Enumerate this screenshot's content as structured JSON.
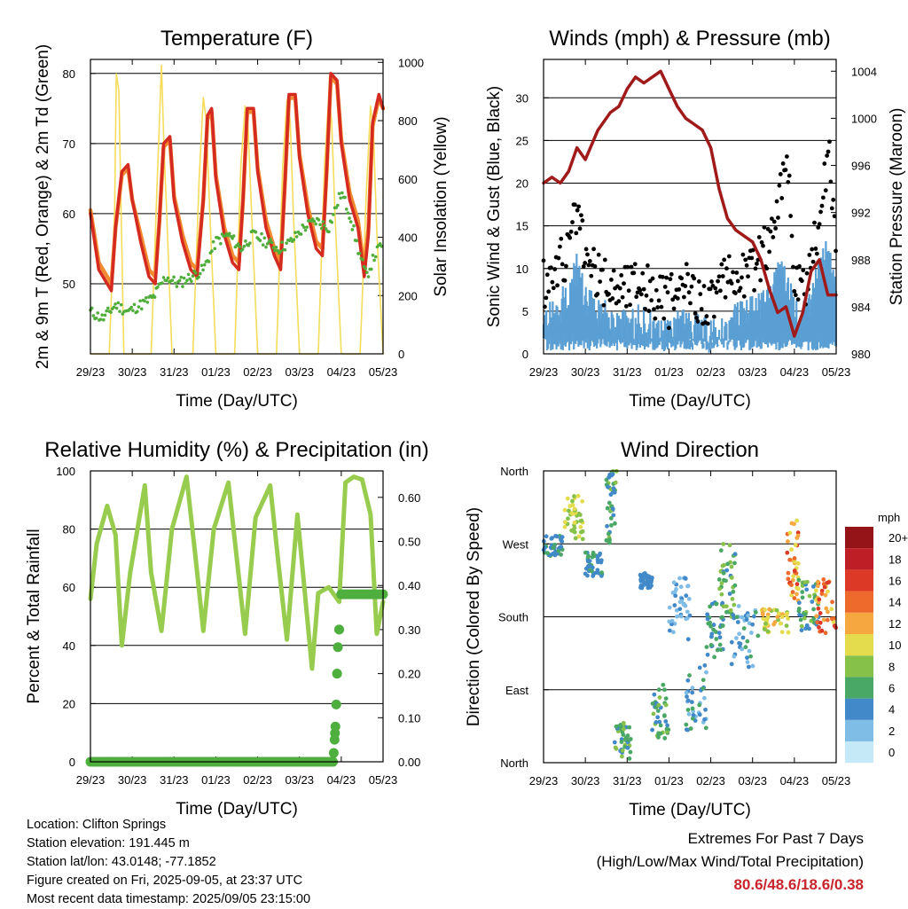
{
  "figure": {
    "info": {
      "location": "Location: Clifton Springs",
      "elevation": "Station elevation: 191.445 m",
      "latlon": "Station lat/lon: 43.0148; -77.1852",
      "created": "Figure created on Fri, 2025-09-05, at 23:37 UTC",
      "recent": "Most recent data timestamp: 2025/09/05 23:15:00"
    },
    "extremes": {
      "title": "Extremes For Past 7 Days",
      "subtitle": "(High/Low/Max Wind/Total Precipitation)",
      "values": "80.6/48.6/18.6/0.38"
    },
    "colorbar": {
      "unit": "mph",
      "labels": [
        "0",
        "2",
        "4",
        "6",
        "8",
        "10",
        "12",
        "14",
        "16",
        "18",
        "20+"
      ],
      "colors": [
        "#c6e9f7",
        "#7fbde6",
        "#4189c8",
        "#4aa866",
        "#86c14a",
        "#e4dc4c",
        "#f6a740",
        "#ee6a2c",
        "#dc3a26",
        "#be1e26",
        "#941418"
      ]
    }
  },
  "chart_data": [
    {
      "type": "line",
      "title": "Temperature (F)",
      "xlabel": "Time (Day/UTC)",
      "ylabel": "2m & 9m T (Red, Orange) & 2m Td (Green)",
      "ylabel_right": "Solar Insolation (Yellow)",
      "x_ticks": [
        "29/23",
        "30/23",
        "31/23",
        "01/23",
        "02/23",
        "03/23",
        "04/23",
        "05/23"
      ],
      "ylim": [
        40,
        82
      ],
      "y_ticks": [
        "50",
        "60",
        "70",
        "80"
      ],
      "y2lim": [
        0,
        1010
      ],
      "y2_ticks": [
        "0",
        "200",
        "400",
        "600",
        "800",
        "1000"
      ],
      "grid": "horizontal",
      "colors": {
        "t2m": "#d42a20",
        "t9m": "#f28a30",
        "td": "#4fad3a",
        "solar": "#f5dc5a"
      },
      "series": [
        {
          "key": "t2m",
          "x": [
            0,
            0.2,
            0.5,
            0.6,
            0.75,
            0.9,
            1.0,
            1.2,
            1.4,
            1.55,
            1.65,
            1.75,
            1.9,
            2.0,
            2.2,
            2.4,
            2.55,
            2.7,
            2.8,
            2.9,
            3.0,
            3.2,
            3.4,
            3.55,
            3.65,
            3.75,
            3.9,
            4.0,
            4.2,
            4.4,
            4.55,
            4.65,
            4.75,
            4.9,
            5.0,
            5.2,
            5.4,
            5.55,
            5.65,
            5.75,
            5.9,
            6.0,
            6.2,
            6.4,
            6.55,
            6.65,
            6.75,
            6.9,
            7.0
          ],
          "values": [
            60,
            52,
            49,
            58,
            66,
            67,
            62,
            56,
            51,
            50,
            59,
            70,
            71,
            62,
            56,
            52,
            51,
            62,
            74,
            75,
            65,
            57,
            53,
            52,
            62,
            75,
            75,
            66,
            58,
            54,
            52,
            64,
            77,
            77,
            68,
            60,
            55,
            54,
            66,
            80,
            79,
            70,
            62,
            58,
            51,
            57,
            73,
            77,
            75
          ]
        },
        {
          "key": "t9m",
          "x": [
            0,
            0.2,
            0.5,
            0.6,
            0.75,
            0.9,
            1.0,
            1.2,
            1.4,
            1.55,
            1.65,
            1.75,
            1.9,
            2.0,
            2.2,
            2.4,
            2.55,
            2.7,
            2.8,
            2.9,
            3.0,
            3.2,
            3.4,
            3.55,
            3.65,
            3.75,
            3.9,
            4.0,
            4.2,
            4.4,
            4.55,
            4.65,
            4.75,
            4.9,
            5.0,
            5.2,
            5.4,
            5.55,
            5.65,
            5.75,
            5.9,
            6.0,
            6.2,
            6.4,
            6.55,
            6.65,
            6.75,
            6.9,
            7.0
          ],
          "values": [
            60.5,
            53,
            50,
            58,
            65.5,
            66.5,
            62,
            57,
            52,
            51,
            59,
            69.5,
            70.5,
            62.5,
            57,
            53,
            52,
            62,
            73.5,
            74.5,
            65.5,
            58,
            54,
            53,
            62,
            74.5,
            74.5,
            66.5,
            59,
            55,
            53,
            64,
            76.5,
            76.5,
            68.5,
            61,
            56,
            55,
            66,
            79.5,
            78.5,
            70.5,
            63,
            59,
            52,
            58,
            72.5,
            76.5,
            75
          ]
        },
        {
          "key": "td",
          "x": [
            0,
            0.3,
            0.6,
            0.9,
            1.2,
            1.5,
            1.8,
            2.1,
            2.4,
            2.7,
            3.0,
            3.3,
            3.6,
            3.9,
            4.2,
            4.5,
            4.8,
            5.1,
            5.4,
            5.7,
            6.0,
            6.2,
            6.4,
            6.6,
            6.8,
            7.0
          ],
          "values": [
            46,
            45,
            47,
            46,
            47,
            48,
            51,
            50,
            51,
            52,
            56,
            57,
            55,
            57,
            56,
            55,
            56,
            58,
            59,
            58,
            63,
            60,
            55,
            51,
            54,
            56
          ]
        },
        {
          "key": "solar",
          "x": [
            0,
            0.45,
            0.58,
            0.62,
            0.68,
            0.72,
            0.8,
            1.0,
            1.45,
            1.6,
            1.7,
            1.76,
            1.82,
            1.95,
            2.45,
            2.6,
            2.7,
            2.77,
            2.85,
            3.0,
            3.45,
            3.6,
            3.7,
            3.77,
            3.85,
            4.0,
            4.45,
            4.6,
            4.7,
            4.78,
            4.85,
            5.0,
            5.45,
            5.6,
            5.7,
            5.77,
            5.85,
            6.0,
            6.45,
            6.6,
            6.7,
            6.77,
            6.85,
            7.0
          ],
          "values": [
            0,
            0,
            500,
            960,
            900,
            600,
            0,
            0,
            0,
            600,
            990,
            700,
            500,
            0,
            0,
            600,
            880,
            800,
            500,
            0,
            0,
            650,
            850,
            780,
            500,
            0,
            0,
            650,
            870,
            800,
            500,
            0,
            0,
            650,
            880,
            800,
            480,
            0,
            0,
            550,
            850,
            760,
            420,
            0
          ]
        }
      ]
    },
    {
      "type": "line",
      "title": "Winds (mph) & Pressure (mb)",
      "xlabel": "Time (Day/UTC)",
      "ylabel": "Sonic Wind & Gust (Blue, Black)",
      "ylabel_right": "Station Pressure (Maroon)",
      "x_ticks": [
        "29/23",
        "30/23",
        "31/23",
        "01/23",
        "02/23",
        "03/23",
        "04/23",
        "05/23"
      ],
      "ylim": [
        0,
        34.5
      ],
      "y_ticks": [
        "0",
        "5",
        "10",
        "15",
        "20",
        "25",
        "30"
      ],
      "y2lim": [
        980,
        1005
      ],
      "y2_ticks": [
        "980",
        "984",
        "988",
        "992",
        "996",
        "1000",
        "1004"
      ],
      "grid": "horizontal",
      "colors": {
        "wind": "#5a9fd4",
        "gust": "#000000",
        "pressure": "#a01a1a"
      },
      "series": [
        {
          "key": "pressure",
          "x": [
            0,
            0.2,
            0.4,
            0.6,
            0.8,
            1.0,
            1.3,
            1.6,
            1.8,
            2.0,
            2.2,
            2.4,
            2.6,
            2.8,
            3.0,
            3.2,
            3.4,
            3.6,
            3.8,
            4.0,
            4.2,
            4.4,
            4.6,
            4.8,
            5.0,
            5.2,
            5.4,
            5.6,
            5.8,
            6.0,
            6.2,
            6.4,
            6.6,
            6.8,
            7.0
          ],
          "values": [
            994.5,
            995,
            994.5,
            995.5,
            997.5,
            996.5,
            999,
            1000.5,
            1001,
            1002.5,
            1003.5,
            1003,
            1003.5,
            1004,
            1002.5,
            1001,
            1000,
            999.5,
            999,
            997.5,
            994,
            991.5,
            990.5,
            990,
            989.5,
            988,
            985.5,
            983.5,
            984,
            981.5,
            983.5,
            987,
            988,
            985,
            985
          ]
        },
        {
          "key": "wind",
          "x": [
            0,
            0.3,
            0.6,
            0.8,
            1.0,
            1.3,
            1.6,
            2.0,
            2.3,
            2.6,
            3.0,
            3.3,
            3.6,
            4.0,
            4.3,
            4.6,
            5.0,
            5.3,
            5.5,
            5.7,
            5.8,
            6.0,
            6.2,
            6.4,
            6.6,
            6.8,
            7.0
          ],
          "values": [
            4,
            5,
            7,
            10,
            6,
            5,
            4,
            3,
            4,
            3,
            2,
            4,
            3,
            2,
            3,
            4,
            5,
            6,
            8,
            11,
            9,
            5,
            4,
            6,
            10,
            12,
            8
          ]
        },
        {
          "key": "gust",
          "x": [
            0,
            0.3,
            0.6,
            0.8,
            1.0,
            1.3,
            1.6,
            2.0,
            2.3,
            2.6,
            3.0,
            3.3,
            3.6,
            4.0,
            4.3,
            4.6,
            5.0,
            5.3,
            5.5,
            5.7,
            5.8,
            6.0,
            6.2,
            6.4,
            6.6,
            6.8,
            7.0
          ],
          "values": [
            8,
            10,
            12,
            17,
            11,
            9,
            8,
            8,
            9,
            7,
            6,
            8,
            7,
            6,
            8,
            9,
            10,
            12,
            16,
            20,
            25,
            8,
            7,
            10,
            16,
            24,
            14
          ]
        }
      ]
    },
    {
      "type": "line",
      "title": "Relative Humidity (%) & Precipitation (in)",
      "xlabel": "Time (Day/UTC)",
      "ylabel": "Percent & Total Rainfall",
      "x_ticks": [
        "29/23",
        "30/23",
        "31/23",
        "01/23",
        "02/23",
        "03/23",
        "04/23",
        "05/23"
      ],
      "ylim": [
        0,
        100
      ],
      "y_ticks": [
        "0",
        "20",
        "40",
        "60",
        "80",
        "100"
      ],
      "y2lim": [
        0,
        0.66
      ],
      "y2_ticks": [
        "0.00",
        "0.10",
        "0.20",
        "0.30",
        "0.40",
        "0.50",
        "0.60"
      ],
      "grid": "horizontal",
      "colors": {
        "rh": "#98cc4e",
        "precip": "#4eae3e"
      },
      "series": [
        {
          "key": "rh",
          "x": [
            0,
            0.15,
            0.4,
            0.6,
            0.75,
            0.95,
            1.3,
            1.45,
            1.7,
            1.95,
            2.3,
            2.5,
            2.7,
            2.95,
            3.3,
            3.5,
            3.7,
            3.95,
            4.3,
            4.5,
            4.7,
            4.95,
            5.3,
            5.45,
            5.7,
            5.95,
            6.1,
            6.3,
            6.5,
            6.7,
            6.85,
            7.0
          ],
          "values": [
            56,
            75,
            88,
            78,
            40,
            65,
            95,
            65,
            45,
            80,
            98,
            72,
            45,
            80,
            96,
            70,
            44,
            84,
            95,
            68,
            42,
            85,
            32,
            58,
            60,
            55,
            96,
            98,
            97,
            85,
            44,
            55
          ]
        },
        {
          "key": "precip",
          "x": [
            0,
            5.8,
            5.82,
            5.84,
            5.86,
            5.88,
            5.9,
            5.92,
            5.95,
            6.0,
            6.2,
            6.5,
            7.0
          ],
          "values": [
            0,
            0,
            0.02,
            0.05,
            0.08,
            0.13,
            0.2,
            0.26,
            0.3,
            0.38,
            0.38,
            0.38,
            0.38
          ]
        }
      ]
    },
    {
      "type": "scatter",
      "title": "Wind Direction",
      "xlabel": "Time (Day/UTC)",
      "ylabel": "Direction (Colored By Speed)",
      "x_ticks": [
        "29/23",
        "30/23",
        "31/23",
        "01/23",
        "02/23",
        "03/23",
        "04/23",
        "05/23"
      ],
      "y_ticks": [
        "North",
        "East",
        "South",
        "West",
        "North"
      ],
      "ylim": [
        0,
        360
      ],
      "grid": "horizontal",
      "clusters": [
        {
          "x": [
            0.0,
            0.5
          ],
          "dir": [
            255,
            280
          ],
          "speed": [
            3,
            6
          ]
        },
        {
          "x": [
            0.5,
            0.95
          ],
          "dir": [
            275,
            330
          ],
          "speed": [
            7,
            11
          ]
        },
        {
          "x": [
            1.0,
            1.4
          ],
          "dir": [
            230,
            260
          ],
          "speed": [
            3,
            6
          ]
        },
        {
          "x": [
            1.5,
            1.75
          ],
          "dir": [
            270,
            360
          ],
          "speed": [
            3,
            8
          ]
        },
        {
          "x": [
            1.7,
            2.1
          ],
          "dir": [
            5,
            50
          ],
          "speed": [
            4,
            8
          ]
        },
        {
          "x": [
            2.3,
            2.6
          ],
          "dir": [
            215,
            235
          ],
          "speed": [
            3,
            5
          ]
        },
        {
          "x": [
            2.6,
            3.0
          ],
          "dir": [
            30,
            100
          ],
          "speed": [
            3,
            8
          ]
        },
        {
          "x": [
            3.0,
            3.5
          ],
          "dir": [
            150,
            230
          ],
          "speed": [
            1,
            4
          ]
        },
        {
          "x": [
            3.4,
            3.9
          ],
          "dir": [
            40,
            120
          ],
          "speed": [
            2,
            6
          ]
        },
        {
          "x": [
            3.9,
            4.3
          ],
          "dir": [
            130,
            200
          ],
          "speed": [
            3,
            7
          ]
        },
        {
          "x": [
            4.2,
            4.6
          ],
          "dir": [
            180,
            270
          ],
          "speed": [
            4,
            9
          ]
        },
        {
          "x": [
            4.5,
            5.2
          ],
          "dir": [
            110,
            200
          ],
          "speed": [
            2,
            6
          ]
        },
        {
          "x": [
            5.2,
            5.9
          ],
          "dir": [
            160,
            190
          ],
          "speed": [
            8,
            12
          ]
        },
        {
          "x": [
            5.8,
            6.1
          ],
          "dir": [
            200,
            300
          ],
          "speed": [
            9,
            16
          ]
        },
        {
          "x": [
            6.1,
            6.6
          ],
          "dir": [
            160,
            230
          ],
          "speed": [
            3,
            8
          ]
        },
        {
          "x": [
            6.5,
            7.0
          ],
          "dir": [
            160,
            230
          ],
          "speed": [
            10,
            17
          ]
        }
      ]
    }
  ]
}
